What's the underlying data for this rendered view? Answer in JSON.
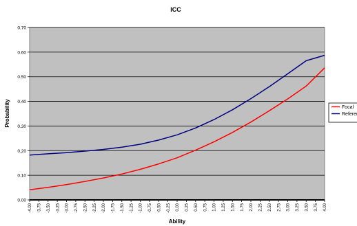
{
  "chart_data": {
    "type": "line",
    "title": "ICC",
    "xlabel": "Ability",
    "ylabel": "Probability",
    "xlim": [
      -4.0,
      4.0
    ],
    "ylim": [
      0.0,
      0.7
    ],
    "yticks": [
      "0.00",
      "0.10",
      "0.20",
      "0.30",
      "0.40",
      "0.50",
      "0.60",
      "0.70"
    ],
    "xticks": [
      "-4.00",
      "-3.75",
      "-3.50",
      "-3.25",
      "-3.00",
      "-2.75",
      "-2.50",
      "-2.25",
      "-2.00",
      "-1.75",
      "-1.50",
      "-1.25",
      "-1.00",
      "-0.75",
      "-0.50",
      "-0.25",
      "0.00",
      "0.25",
      "0.50",
      "0.75",
      "1.00",
      "1.25",
      "1.50",
      "1.75",
      "2.00",
      "2.25",
      "2.50",
      "2.75",
      "3.00",
      "3.25",
      "3.50",
      "3.75",
      "4.00"
    ],
    "grid": true,
    "legend_position": "right",
    "plot_background": "#c0c0c0",
    "x": [
      -4.0,
      -3.5,
      -3.0,
      -2.5,
      -2.0,
      -1.5,
      -1.0,
      -0.5,
      0.0,
      0.5,
      1.0,
      1.5,
      2.0,
      2.5,
      3.0,
      3.5,
      4.0
    ],
    "series": [
      {
        "name": "Focal",
        "color": "#ff0000",
        "values": [
          0.041,
          0.051,
          0.062,
          0.075,
          0.089,
          0.105,
          0.124,
          0.146,
          0.171,
          0.202,
          0.236,
          0.274,
          0.316,
          0.362,
          0.41,
          0.462,
          0.536
        ]
      },
      {
        "name": "Reference",
        "color": "#000080",
        "values": [
          0.182,
          0.187,
          0.192,
          0.198,
          0.205,
          0.214,
          0.226,
          0.243,
          0.264,
          0.292,
          0.326,
          0.366,
          0.411,
          0.46,
          0.512,
          0.565,
          0.587
        ]
      }
    ]
  }
}
